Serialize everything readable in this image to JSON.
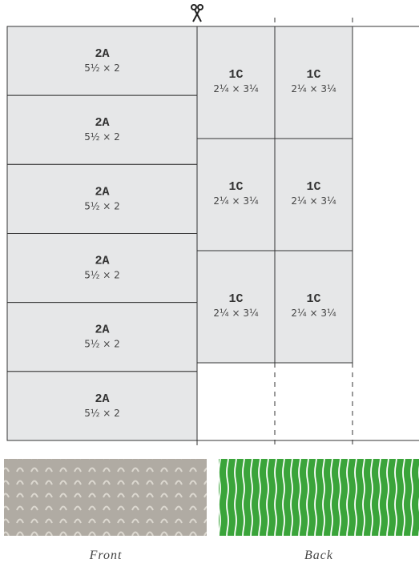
{
  "pieces_front": [
    {
      "label": "2A",
      "size": "5½ × 2"
    },
    {
      "label": "2A",
      "size": "5½ × 2"
    },
    {
      "label": "2A",
      "size": "5½ × 2"
    },
    {
      "label": "2A",
      "size": "5½ × 2"
    },
    {
      "label": "2A",
      "size": "5½ × 2"
    },
    {
      "label": "2A",
      "size": "5½ × 2"
    }
  ],
  "pieces_back": [
    {
      "label": "1C",
      "size": "2¼ × 3¼"
    },
    {
      "label": "1C",
      "size": "2¼ × 3¼"
    },
    {
      "label": "1C",
      "size": "2¼ × 3¼"
    },
    {
      "label": "1C",
      "size": "2¼ × 3¼"
    },
    {
      "label": "1C",
      "size": "2¼ × 3¼"
    },
    {
      "label": "1C",
      "size": "2¼ × 3¼"
    }
  ],
  "fabrics": {
    "front": "Front",
    "back": "Back"
  }
}
